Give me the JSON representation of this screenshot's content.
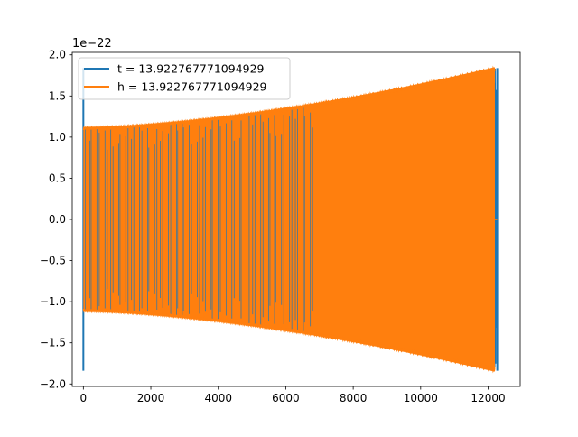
{
  "chart_data": {
    "type": "line",
    "title": "",
    "xlabel": "",
    "ylabel": "",
    "y_scale_label": "1e−22",
    "xlim": [
      -330,
      12950
    ],
    "ylim": [
      -2.03,
      2.03
    ],
    "x_ticks": [
      0,
      2000,
      4000,
      6000,
      8000,
      10000,
      12000
    ],
    "x_tick_labels": [
      "0",
      "2000",
      "4000",
      "6000",
      "8000",
      "10000",
      "12000"
    ],
    "y_ticks": [
      -2.0,
      -1.5,
      -1.0,
      -0.5,
      0.0,
      0.5,
      1.0,
      1.5,
      2.0
    ],
    "y_tick_labels": [
      "−2.0",
      "−1.5",
      "−1.0",
      "−0.5",
      "0.0",
      "0.5",
      "1.0",
      "1.5",
      "2.0"
    ],
    "grid": false,
    "legend_position": "top-left",
    "series": [
      {
        "name": "t = 13.922767771094929",
        "color": "#1f77b4",
        "x_start": 0,
        "x_end": 12270,
        "amplitude_start": 1.12,
        "amplitude_end": 1.84,
        "spike_at_start": 1.84
      },
      {
        "name": "h = 13.922767771094929",
        "color": "#ff7f0e",
        "x_start": 0,
        "x_end": 12200,
        "amplitude_start": 1.12,
        "amplitude_end": 1.85,
        "tail_value": 0.0,
        "tail_x_end": 12270
      }
    ]
  }
}
